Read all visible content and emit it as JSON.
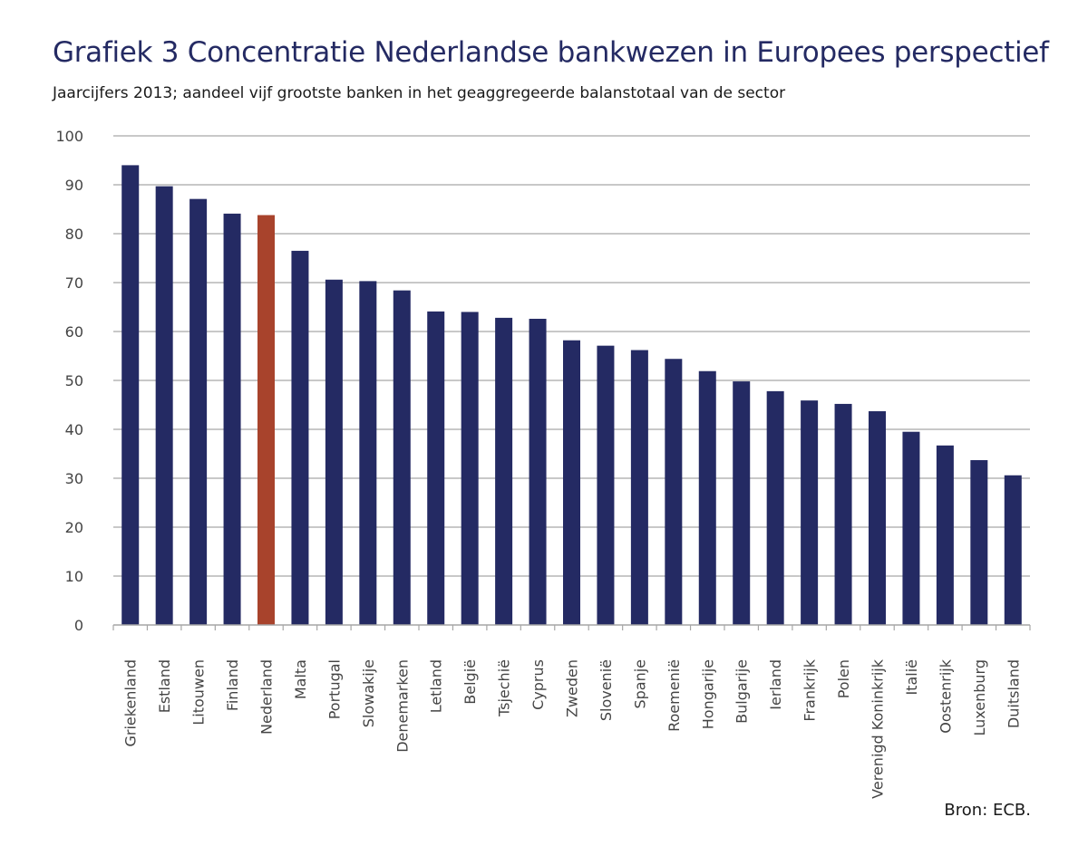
{
  "title": "Grafiek 3 Concentratie Nederlandse bankwezen in Europees perspectief",
  "subtitle": "Jaarcijfers 2013; aandeel vijf grootste banken in het geaggregeerde balanstotaal van de sector",
  "source": "Bron: ECB.",
  "colors": {
    "bar": "#242a63",
    "highlight": "#a8432c",
    "grid": "#a6a6a6",
    "title": "#242a63",
    "text": "#444444"
  },
  "chart_data": {
    "type": "bar",
    "title": "Grafiek 3 Concentratie Nederlandse bankwezen in Europees perspectief",
    "subtitle": "Jaarcijfers 2013; aandeel vijf grootste banken in het geaggregeerde balanstotaal van de sector",
    "xlabel": "",
    "ylabel": "",
    "ylim": [
      0,
      100
    ],
    "yticks": [
      0,
      10,
      20,
      30,
      40,
      50,
      60,
      70,
      80,
      90,
      100
    ],
    "grid": true,
    "highlight_category": "Nederland",
    "categories": [
      "Griekenland",
      "Estland",
      "Litouwen",
      "Finland",
      "Nederland",
      "Malta",
      "Portugal",
      "Slowakije",
      "Denemarken",
      "Letland",
      "België",
      "Tsjechië",
      "Cyprus",
      "Zweden",
      "Slovenië",
      "Spanje",
      "Roemenië",
      "Hongarije",
      "Bulgarije",
      "Ierland",
      "Frankrijk",
      "Polen",
      "Verenigd Koninkrijk",
      "Italië",
      "Oostenrijk",
      "Luxenburg",
      "Duitsland"
    ],
    "values": [
      94.0,
      89.7,
      87.1,
      84.1,
      83.8,
      76.5,
      70.6,
      70.3,
      68.4,
      64.1,
      64.0,
      62.8,
      62.6,
      58.2,
      57.1,
      56.2,
      54.4,
      51.9,
      49.8,
      47.8,
      45.9,
      45.2,
      43.7,
      39.5,
      36.7,
      33.7,
      30.6
    ]
  }
}
